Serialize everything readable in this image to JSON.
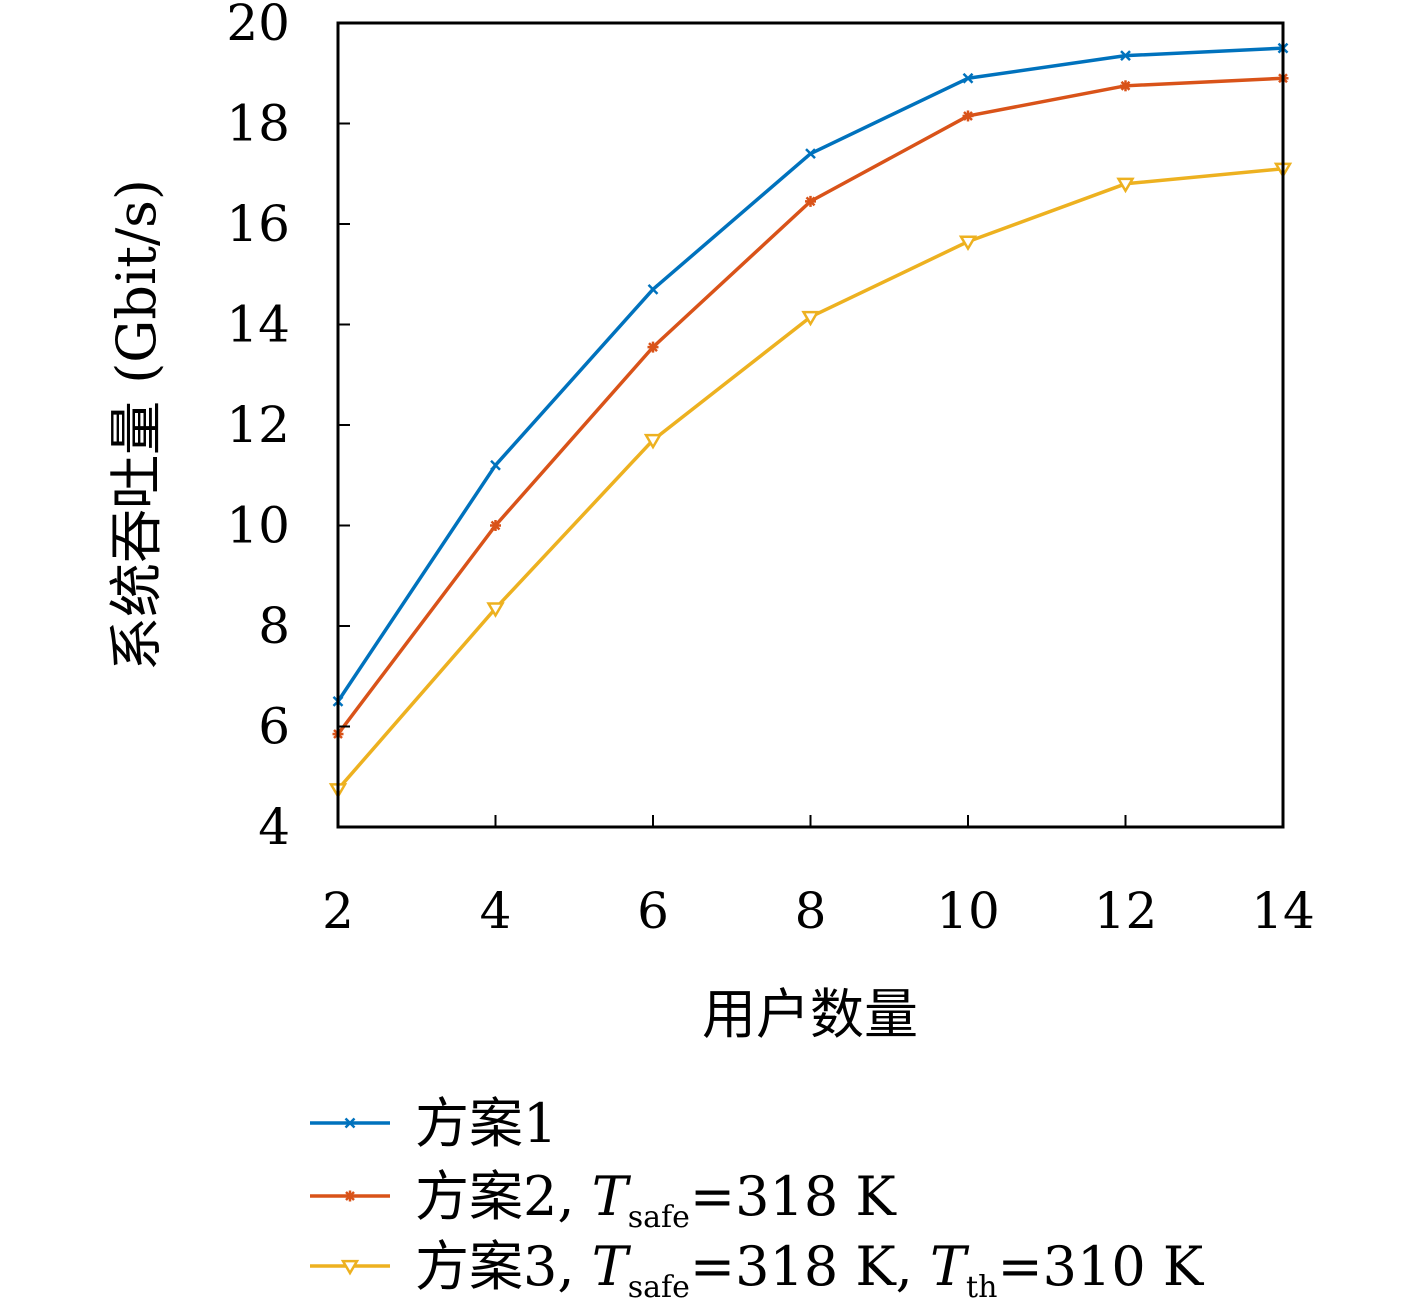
{
  "chart_data": {
    "type": "line",
    "title": "",
    "xlabel": "用户数量",
    "ylabel": "系统吞吐量 (Gbit/s)",
    "x": [
      2,
      4,
      6,
      8,
      10,
      12,
      14
    ],
    "xlim": [
      2,
      14
    ],
    "ylim": [
      4,
      20
    ],
    "xticks": [
      "2",
      "4",
      "6",
      "8",
      "10",
      "12",
      "14"
    ],
    "yticks": [
      "4",
      "6",
      "8",
      "10",
      "12",
      "14",
      "16",
      "18",
      "20"
    ],
    "grid": false,
    "legend_position": "bottom",
    "series": [
      {
        "name": "方案1",
        "color": "#0072BD",
        "marker": "x",
        "values": [
          6.5,
          11.2,
          14.7,
          17.4,
          18.9,
          19.35,
          19.5
        ]
      },
      {
        "name": "方案2, T_safe=318 K",
        "color": "#D95319",
        "marker": "asterisk",
        "values": [
          5.85,
          10.0,
          13.55,
          16.45,
          18.15,
          18.75,
          18.9
        ]
      },
      {
        "name": "方案3, T_safe=318 K, T_th=310 K",
        "color": "#EDB120",
        "marker": "triangle-down",
        "values": [
          4.75,
          8.35,
          11.7,
          14.15,
          15.65,
          16.8,
          17.1
        ]
      }
    ]
  },
  "legend": {
    "items": [
      {
        "prefix": "方案1",
        "parts": []
      },
      {
        "prefix": "方案2, ",
        "parts": [
          {
            "sym": "T",
            "sub": "safe",
            "rest": "=318 K"
          }
        ]
      },
      {
        "prefix": "方案3, ",
        "parts": [
          {
            "sym": "T",
            "sub": "safe",
            "rest": "=318 K, "
          },
          {
            "sym": "T",
            "sub": "th",
            "rest": "=310 K"
          }
        ]
      }
    ]
  }
}
